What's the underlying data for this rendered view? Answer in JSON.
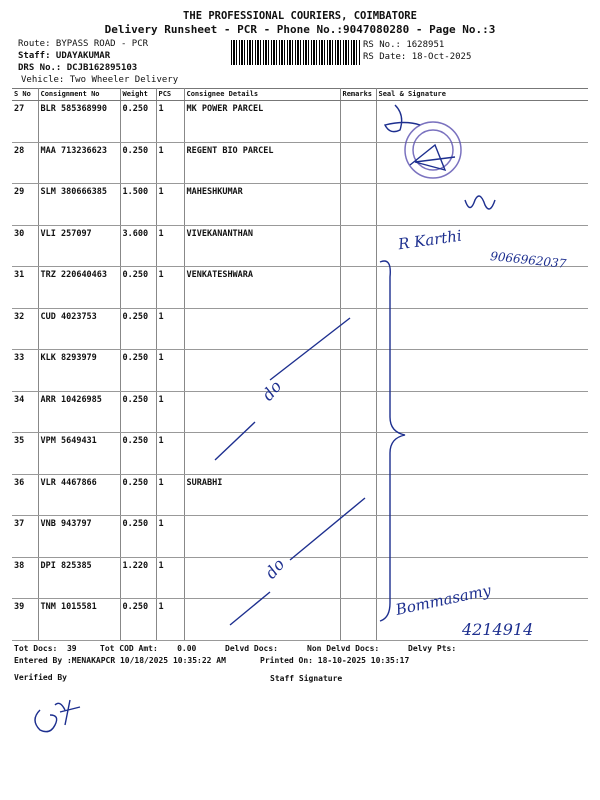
{
  "header": {
    "company": "THE PROFESSIONAL COURIERS, COIMBATORE",
    "subtitle": "Delivery Runsheet - PCR - Phone No.:9047080280 - Page No.:3",
    "route": "Route: BYPASS ROAD - PCR",
    "staff": "Staff: UDAYAKUMAR",
    "drs_no": "DRS No.: DCJB162895103",
    "vehicle": "Vehicle: Two Wheeler Delivery",
    "rs_no": "RS No.: 1628951",
    "rs_date": "RS Date: 18-Oct-2025"
  },
  "table": {
    "columns": [
      "S No",
      "Consignment No",
      "Weight",
      "PCS",
      "Consignee Details",
      "Remarks",
      "Seal & Signature"
    ],
    "rows": [
      {
        "sno": "27",
        "consignment": "BLR 585368990",
        "weight": "0.250",
        "pcs": "1",
        "consignee": "MK POWER PARCEL"
      },
      {
        "sno": "28",
        "consignment": "MAA 713236623",
        "weight": "0.250",
        "pcs": "1",
        "consignee": "REGENT BIO PARCEL"
      },
      {
        "sno": "29",
        "consignment": "SLM 380666385",
        "weight": "1.500",
        "pcs": "1",
        "consignee": "MAHESHKUMAR"
      },
      {
        "sno": "30",
        "consignment": "VLI 257097",
        "weight": "3.600",
        "pcs": "1",
        "consignee": "VIVEKANANTHAN"
      },
      {
        "sno": "31",
        "consignment": "TRZ 220640463",
        "weight": "0.250",
        "pcs": "1",
        "consignee": "VENKATESHWARA"
      },
      {
        "sno": "32",
        "consignment": "CUD 4023753",
        "weight": "0.250",
        "pcs": "1",
        "consignee": ""
      },
      {
        "sno": "33",
        "consignment": "KLK 8293979",
        "weight": "0.250",
        "pcs": "1",
        "consignee": ""
      },
      {
        "sno": "34",
        "consignment": "ARR 10426985",
        "weight": "0.250",
        "pcs": "1",
        "consignee": ""
      },
      {
        "sno": "35",
        "consignment": "VPM 5649431",
        "weight": "0.250",
        "pcs": "1",
        "consignee": ""
      },
      {
        "sno": "36",
        "consignment": "VLR 4467866",
        "weight": "0.250",
        "pcs": "1",
        "consignee": "SURABHI"
      },
      {
        "sno": "37",
        "consignment": "VNB 943797",
        "weight": "0.250",
        "pcs": "1",
        "consignee": ""
      },
      {
        "sno": "38",
        "consignment": "DPI 825385",
        "weight": "1.220",
        "pcs": "1",
        "consignee": ""
      },
      {
        "sno": "39",
        "consignment": "TNM 1015581",
        "weight": "0.250",
        "pcs": "1",
        "consignee": ""
      }
    ]
  },
  "footer": {
    "tot_docs": "Tot Docs:  39",
    "tot_cod": "Tot COD Amt:    0.00",
    "delvd_docs": "Delvd Docs:",
    "non_delvd_docs": "Non Delvd Docs:",
    "delvy_pts": "Delvy Pts:",
    "entered_by": "Entered By :MENAKAPCR 10/18/2025 10:35:22 AM",
    "printed_on": "Printed On: 18-10-2025 10:35:17",
    "verified_by": "Verified By",
    "staff_signature": "Staff Signature"
  },
  "handwriting": {
    "receiver_name": "R Karthi",
    "receiver_phone": "9066962037",
    "ditto_1": "do",
    "ditto_2": "do",
    "bottom_name": "Bommasamy",
    "bottom_number": "4214914"
  },
  "colors": {
    "ink": "#1d2f8f",
    "stamp": "#5a4fb0"
  }
}
